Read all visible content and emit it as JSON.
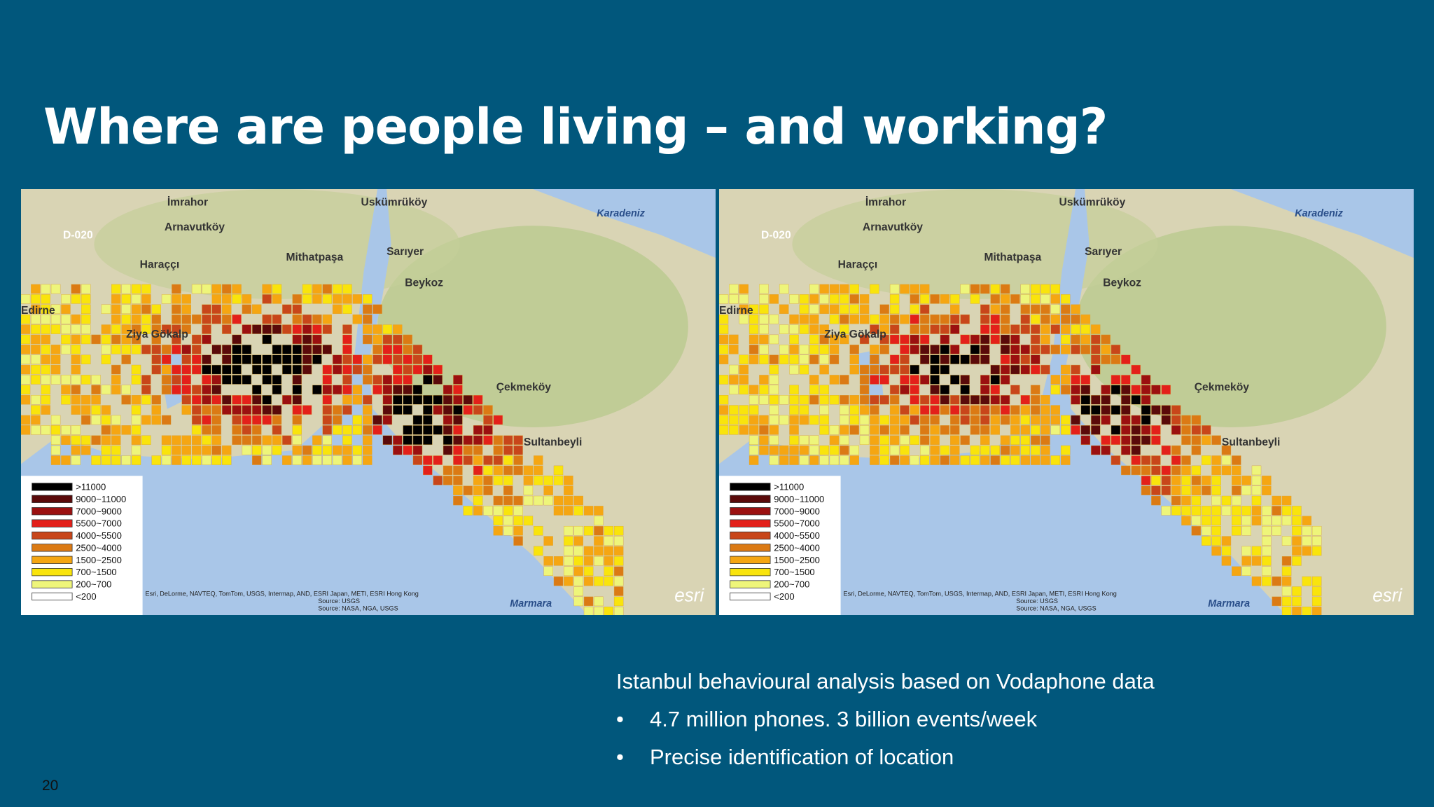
{
  "header": {
    "title": "Where are people living – and working?"
  },
  "map": {
    "places": [
      "İmrahor",
      "Arnavutköy",
      "Uskümrüköy",
      "Karadeniz",
      "D-020",
      "Haraççı",
      "Mithatpaşa",
      "Sarıyer",
      "Beykoz",
      "Edirne",
      "Ziya Gökalp",
      "Çekmeköy",
      "Sultanbeyli",
      "Marmara"
    ],
    "attribution": [
      "Esri, DeLorme, NAVTEQ, TomTom, USGS, Intermap, AND, ESRI Japan, METI, ESRI Hong Kong",
      "Source: USGS",
      "Source: NASA, NGA, USGS"
    ],
    "logo": "esri",
    "legend": [
      {
        "label": ">11000",
        "color": "#000000"
      },
      {
        "label": "9000~11000",
        "color": "#5a0a0a"
      },
      {
        "label": "7000~9000",
        "color": "#9b1010"
      },
      {
        "label": "5500~7000",
        "color": "#e3201a"
      },
      {
        "label": "4000~5500",
        "color": "#c8461a"
      },
      {
        "label": "2500~4000",
        "color": "#db7a14"
      },
      {
        "label": "1500~2500",
        "color": "#f5a612"
      },
      {
        "label": "700~1500",
        "color": "#f9e40c"
      },
      {
        "label": "200~700",
        "color": "#eef57a"
      },
      {
        "label": "<200",
        "color": "#ffffff"
      }
    ]
  },
  "caption": {
    "heading": "Istanbul behavioural analysis based on Vodaphone data",
    "bullets": [
      "4.7 million phones. 3 billion events/week",
      "Precise identification of location"
    ]
  },
  "page_number": "20"
}
